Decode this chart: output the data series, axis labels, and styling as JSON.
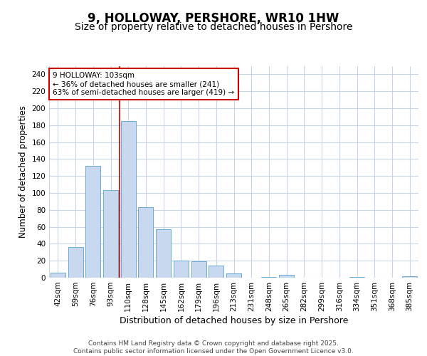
{
  "title": "9, HOLLOWAY, PERSHORE, WR10 1HW",
  "subtitle": "Size of property relative to detached houses in Pershore",
  "xlabel": "Distribution of detached houses by size in Pershore",
  "ylabel": "Number of detached properties",
  "categories": [
    "42sqm",
    "59sqm",
    "76sqm",
    "93sqm",
    "110sqm",
    "128sqm",
    "145sqm",
    "162sqm",
    "179sqm",
    "196sqm",
    "213sqm",
    "231sqm",
    "248sqm",
    "265sqm",
    "282sqm",
    "299sqm",
    "316sqm",
    "334sqm",
    "351sqm",
    "368sqm",
    "385sqm"
  ],
  "values": [
    6,
    36,
    132,
    103,
    185,
    83,
    57,
    20,
    19,
    14,
    5,
    0,
    1,
    3,
    0,
    0,
    0,
    1,
    0,
    0,
    2
  ],
  "bar_color": "#c8d9ef",
  "bar_edge_color": "#6aaad4",
  "grid_color": "#c8d4e8",
  "vline_color": "#cc0000",
  "annotation_text": "9 HOLLOWAY: 103sqm\n← 36% of detached houses are smaller (241)\n63% of semi-detached houses are larger (419) →",
  "annotation_box_color": "#ffffff",
  "annotation_box_edge": "#cc0000",
  "ylim": [
    0,
    250
  ],
  "yticks": [
    0,
    20,
    40,
    60,
    80,
    100,
    120,
    140,
    160,
    180,
    200,
    220,
    240
  ],
  "footer": "Contains HM Land Registry data © Crown copyright and database right 2025.\nContains public sector information licensed under the Open Government Licence v3.0.",
  "title_fontsize": 12,
  "subtitle_fontsize": 10,
  "xlabel_fontsize": 9,
  "ylabel_fontsize": 8.5,
  "tick_fontsize": 7.5,
  "annotation_fontsize": 7.5,
  "footer_fontsize": 6.5,
  "vline_x": 3.5
}
